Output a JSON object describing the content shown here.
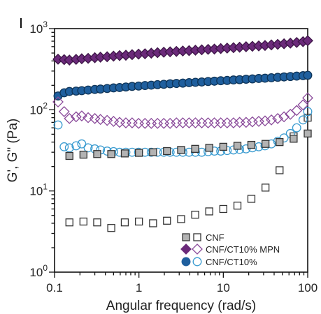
{
  "chart_data": {
    "type": "scatter",
    "x_scale": "log",
    "y_scale": "log",
    "xlim": [
      0.1,
      100
    ],
    "ylim": [
      1,
      1000
    ],
    "xlabel": "Angular frequency (rad/s)",
    "ylabel": "G', G\" (Pa)",
    "x_ticks": [
      {
        "value": 0.1,
        "label": "0.1"
      },
      {
        "value": 1,
        "label": "1"
      },
      {
        "value": 10,
        "label": "10"
      },
      {
        "value": 100,
        "label": "100"
      }
    ],
    "y_ticks": [
      {
        "value": 1,
        "base": "10",
        "exp": "0"
      },
      {
        "value": 10,
        "base": "10",
        "exp": "1"
      },
      {
        "value": 100,
        "base": "10",
        "exp": "2"
      },
      {
        "value": 1000,
        "base": "10",
        "exp": "3"
      }
    ],
    "grid": false,
    "legend_position": "bottom-right",
    "legend": [
      {
        "label": "CNF",
        "marker": "square",
        "filled_color": "#b3b3b3",
        "open_color": "#333333"
      },
      {
        "label": "CNF/CT10% MPN",
        "marker": "diamond",
        "filled_color": "#6b2a7a",
        "open_color": "#8a4a9a"
      },
      {
        "label": "CNF/CT10%",
        "marker": "circle",
        "filled_color": "#1f5f9e",
        "open_color": "#3a9bd0"
      }
    ],
    "series": [
      {
        "name": "CNF G'",
        "marker": "square",
        "fill": "#b3b3b3",
        "stroke": "#333333",
        "x": [
          0.15,
          0.22,
          0.32,
          0.47,
          0.68,
          1.0,
          1.47,
          2.15,
          3.16,
          4.64,
          6.81,
          10,
          14.7,
          21.5,
          31.6,
          46.4,
          68.1,
          100
        ],
        "y": [
          27,
          28,
          28.5,
          28.5,
          29,
          29.5,
          30,
          31,
          32,
          33,
          34,
          35,
          36,
          37,
          38,
          40,
          44,
          51
        ]
      },
      {
        "name": "CNF G\"",
        "marker": "square",
        "fill": "none",
        "stroke": "#333333",
        "x": [
          0.15,
          0.22,
          0.32,
          0.47,
          0.68,
          1.0,
          1.47,
          2.15,
          3.16,
          4.64,
          6.81,
          10,
          14.7,
          21.5,
          31.6,
          46.4,
          68.1,
          100
        ],
        "y": [
          4.1,
          4.2,
          4.1,
          3.5,
          4.1,
          4.2,
          4.0,
          4.3,
          4.5,
          5.1,
          5.6,
          6.0,
          6.6,
          8.0,
          11,
          18,
          47,
          80
        ]
      },
      {
        "name": "CNF/CT10% MPN G'",
        "marker": "diamond",
        "fill": "#6b2a7a",
        "stroke": "#3d1547",
        "x": [
          0.11,
          0.13,
          0.15,
          0.18,
          0.21,
          0.25,
          0.3,
          0.35,
          0.42,
          0.5,
          0.59,
          0.7,
          0.83,
          0.99,
          1.18,
          1.4,
          1.66,
          1.97,
          2.34,
          2.78,
          3.31,
          3.93,
          4.67,
          5.55,
          6.6,
          7.84,
          9.32,
          11.1,
          13.2,
          15.6,
          18.6,
          22.1,
          26.3,
          31.2,
          37.1,
          44.1,
          52.4,
          62.3,
          74,
          88,
          100
        ],
        "y": [
          420,
          415,
          410,
          418,
          425,
          430,
          438,
          445,
          450,
          458,
          465,
          470,
          478,
          485,
          490,
          498,
          505,
          512,
          518,
          524,
          530,
          535,
          542,
          548,
          555,
          560,
          568,
          575,
          582,
          590,
          598,
          605,
          612,
          620,
          630,
          640,
          650,
          662,
          675,
          690,
          710
        ]
      },
      {
        "name": "CNF/CT10% MPN G\"",
        "marker": "diamond",
        "fill": "none",
        "stroke": "#8a4a9a",
        "x": [
          0.11,
          0.13,
          0.15,
          0.18,
          0.21,
          0.25,
          0.3,
          0.35,
          0.42,
          0.5,
          0.59,
          0.7,
          0.83,
          0.99,
          1.18,
          1.4,
          1.66,
          1.97,
          2.34,
          2.78,
          3.31,
          3.93,
          4.67,
          5.55,
          6.6,
          7.84,
          9.32,
          11.1,
          13.2,
          15.6,
          18.6,
          22.1,
          26.3,
          31.2,
          37.1,
          44.1,
          52.4,
          62.3,
          74,
          88,
          100
        ],
        "y": [
          125,
          95,
          78,
          82,
          84,
          80,
          78,
          76,
          74,
          72,
          70,
          69,
          69,
          68,
          68,
          68,
          68,
          68,
          68,
          69,
          69,
          69,
          69,
          69,
          69,
          69,
          69,
          69,
          69,
          70,
          70,
          71,
          72,
          73,
          75,
          78,
          82,
          88,
          98,
          115,
          140
        ]
      },
      {
        "name": "CNF/CT10% G'",
        "marker": "circle",
        "fill": "#1f5f9e",
        "stroke": "#0e3458",
        "x": [
          0.11,
          0.13,
          0.15,
          0.18,
          0.21,
          0.25,
          0.3,
          0.35,
          0.42,
          0.5,
          0.59,
          0.7,
          0.83,
          0.99,
          1.18,
          1.4,
          1.66,
          1.97,
          2.34,
          2.78,
          3.31,
          3.93,
          4.67,
          5.55,
          6.6,
          7.84,
          9.32,
          11.1,
          13.2,
          15.6,
          18.6,
          22.1,
          26.3,
          31.2,
          37.1,
          44.1,
          52.4,
          62.3,
          74,
          88,
          100
        ],
        "y": [
          148,
          162,
          168,
          170,
          172,
          175,
          178,
          180,
          183,
          186,
          188,
          191,
          194,
          196,
          199,
          201,
          204,
          206,
          209,
          211,
          213,
          216,
          218,
          220,
          223,
          225,
          228,
          230,
          233,
          235,
          238,
          240,
          243,
          245,
          248,
          251,
          254,
          257,
          260,
          263,
          266
        ]
      },
      {
        "name": "CNF/CT10% G\"",
        "marker": "circle",
        "fill": "none",
        "stroke": "#3a9bd0",
        "x": [
          0.11,
          0.13,
          0.15,
          0.18,
          0.21,
          0.25,
          0.3,
          0.35,
          0.42,
          0.5,
          0.59,
          0.7,
          0.83,
          0.99,
          1.18,
          1.4,
          1.66,
          1.97,
          2.34,
          2.78,
          3.31,
          3.93,
          4.67,
          5.55,
          6.6,
          7.84,
          9.32,
          11.1,
          13.2,
          15.6,
          18.6,
          22.1,
          26.3,
          31.2,
          37.1,
          44.1,
          52.4,
          62.3,
          74,
          88,
          100
        ],
        "y": [
          65,
          35,
          34,
          36,
          38,
          34,
          33,
          32,
          31,
          30.5,
          30,
          30,
          30,
          30,
          30,
          30,
          30,
          30,
          30,
          30,
          30,
          30,
          30,
          30,
          30.5,
          31,
          31,
          31.5,
          32,
          32.5,
          33,
          34,
          35,
          36,
          38,
          41,
          45,
          51,
          60,
          75,
          95
        ]
      }
    ]
  }
}
